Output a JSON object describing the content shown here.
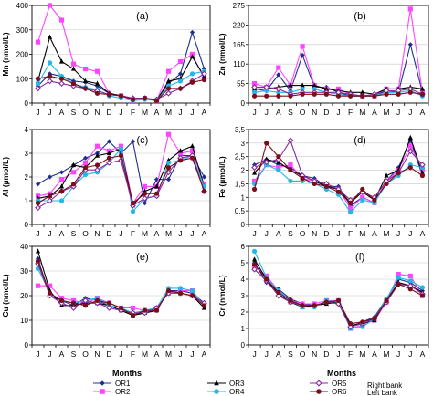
{
  "months_label": "Months",
  "x_ticks": [
    "J",
    "J",
    "A",
    "S",
    "O",
    "N",
    "D",
    "J",
    "F",
    "M",
    "A",
    "M",
    "J",
    "J",
    "A"
  ],
  "series_styles": [
    {
      "id": "OR1",
      "color": "#1f2f8f",
      "marker": "diamond"
    },
    {
      "id": "OR2",
      "color": "#ff44ff",
      "marker": "square"
    },
    {
      "id": "OR3",
      "color": "#000000",
      "marker": "triangle"
    },
    {
      "id": "OR4",
      "color": "#22b8e6",
      "marker": "circle"
    },
    {
      "id": "OR5",
      "color": "#8a2a9a",
      "marker": "diamond-open"
    },
    {
      "id": "OR6",
      "color": "#7a0d1a",
      "marker": "circle"
    }
  ],
  "legend": {
    "entries": [
      {
        "series": "OR1",
        "label": "OR1"
      },
      {
        "series": "OR3",
        "label": "OR3"
      },
      {
        "series": "OR5",
        "label": "OR5"
      },
      {
        "series": "OR2",
        "label": "OR2"
      },
      {
        "series": "OR4",
        "label": "OR4"
      },
      {
        "series": "OR6",
        "label": "OR6"
      }
    ],
    "note_right": "Right bank",
    "note_left": "Left bank"
  },
  "chart_data": [
    {
      "type": "line",
      "panel": "(a)",
      "ylabel": "Mn (nmol/L)",
      "ylim": [
        0,
        400
      ],
      "yticks": [
        0,
        100,
        200,
        300,
        400
      ],
      "ytick_labels": [
        "0",
        "100",
        "200",
        "300",
        "400"
      ],
      "series": [
        {
          "id": "OR1",
          "values": [
            70,
            120,
            110,
            90,
            85,
            70,
            40,
            30,
            15,
            20,
            15,
            80,
            120,
            290,
            140
          ]
        },
        {
          "id": "OR2",
          "values": [
            250,
            400,
            340,
            160,
            140,
            130,
            40,
            30,
            10,
            20,
            10,
            130,
            170,
            200,
            100
          ]
        },
        {
          "id": "OR3",
          "values": [
            90,
            270,
            170,
            140,
            90,
            80,
            40,
            30,
            20,
            20,
            10,
            90,
            100,
            190,
            110
          ]
        },
        {
          "id": "OR4",
          "values": [
            80,
            165,
            110,
            80,
            65,
            55,
            30,
            20,
            10,
            15,
            10,
            70,
            90,
            120,
            130
          ]
        },
        {
          "id": "OR5",
          "values": [
            60,
            90,
            80,
            70,
            60,
            50,
            35,
            30,
            20,
            20,
            15,
            40,
            60,
            90,
            120
          ]
        },
        {
          "id": "OR6",
          "values": [
            100,
            110,
            100,
            80,
            60,
            40,
            35,
            30,
            15,
            20,
            10,
            60,
            60,
            85,
            95
          ]
        }
      ]
    },
    {
      "type": "line",
      "panel": "(b)",
      "ylabel": "Zn (nmol/L)",
      "ylim": [
        0,
        275
      ],
      "yticks": [
        0,
        55,
        110,
        165,
        220,
        275
      ],
      "ytick_labels": [
        "0",
        "55",
        "110",
        "165",
        "220",
        "275"
      ],
      "series": [
        {
          "id": "OR1",
          "values": [
            40,
            35,
            80,
            35,
            135,
            45,
            45,
            30,
            20,
            20,
            20,
            35,
            30,
            165,
            30
          ]
        },
        {
          "id": "OR2",
          "values": [
            55,
            45,
            100,
            50,
            160,
            50,
            40,
            40,
            25,
            20,
            20,
            40,
            40,
            265,
            30
          ]
        },
        {
          "id": "OR3",
          "values": [
            40,
            40,
            45,
            50,
            50,
            50,
            40,
            35,
            30,
            30,
            25,
            40,
            40,
            45,
            40
          ]
        },
        {
          "id": "OR4",
          "values": [
            30,
            35,
            30,
            30,
            40,
            40,
            30,
            25,
            20,
            20,
            20,
            30,
            30,
            35,
            20
          ]
        },
        {
          "id": "OR5",
          "values": [
            45,
            45,
            40,
            25,
            30,
            30,
            30,
            30,
            25,
            20,
            25,
            35,
            35,
            40,
            25
          ]
        },
        {
          "id": "OR6",
          "values": [
            20,
            20,
            20,
            20,
            25,
            25,
            25,
            20,
            20,
            20,
            20,
            25,
            25,
            30,
            25
          ]
        }
      ]
    },
    {
      "type": "line",
      "panel": "(c)",
      "ylabel": "Al (µmol/L)",
      "ylim": [
        0,
        4
      ],
      "yticks": [
        0,
        1,
        2,
        3,
        4
      ],
      "ytick_labels": [
        "0",
        "1",
        "2",
        "3",
        "4"
      ],
      "series": [
        {
          "id": "OR1",
          "values": [
            1.7,
            2.0,
            2.2,
            2.5,
            2.8,
            3.0,
            3.5,
            3.0,
            3.5,
            0.9,
            1.9,
            1.9,
            2.9,
            2.9,
            2.0
          ]
        },
        {
          "id": "OR2",
          "values": [
            1.2,
            1.3,
            1.9,
            2.2,
            2.6,
            3.3,
            3.1,
            3.3,
            0.9,
            1.6,
            1.6,
            3.8,
            3.0,
            3.1,
            1.7
          ]
        },
        {
          "id": "OR3",
          "values": [
            1.1,
            1.2,
            1.6,
            2.5,
            2.4,
            2.9,
            3.0,
            3.2,
            0.8,
            1.4,
            1.6,
            2.7,
            3.1,
            3.3,
            1.6
          ]
        },
        {
          "id": "OR4",
          "values": [
            1.0,
            1.0,
            1.0,
            1.6,
            2.1,
            2.2,
            2.6,
            3.2,
            0.55,
            1.1,
            1.2,
            2.6,
            2.7,
            2.9,
            1.6
          ]
        },
        {
          "id": "OR5",
          "values": [
            0.7,
            1.0,
            1.4,
            1.6,
            2.3,
            2.3,
            2.6,
            2.7,
            0.8,
            1.1,
            1.2,
            2.2,
            2.8,
            2.9,
            1.4
          ]
        },
        {
          "id": "OR6",
          "values": [
            0.9,
            1.2,
            1.4,
            1.7,
            2.4,
            2.5,
            2.8,
            2.9,
            0.9,
            1.3,
            1.3,
            2.4,
            2.7,
            2.8,
            1.4
          ]
        }
      ]
    },
    {
      "type": "line",
      "panel": "(d)",
      "ylabel": "Fe (µmol/L)",
      "ylim": [
        0,
        3.5
      ],
      "yticks": [
        0,
        0.5,
        1,
        1.5,
        2,
        2.5,
        3,
        3.5
      ],
      "ytick_labels": [
        "0",
        "0,5",
        "1",
        "1,5",
        "2",
        "2,5",
        "3",
        "3,5"
      ],
      "series": [
        {
          "id": "OR1",
          "values": [
            2.2,
            2.4,
            2.2,
            2.1,
            1.8,
            1.7,
            1.4,
            1.4,
            0.7,
            1.0,
            0.8,
            1.6,
            2.1,
            3.1,
            1.8
          ]
        },
        {
          "id": "OR2",
          "values": [
            1.6,
            2.2,
            2.1,
            2.2,
            1.7,
            1.6,
            1.4,
            1.3,
            0.6,
            1.0,
            0.8,
            1.6,
            2.0,
            2.9,
            2.0
          ]
        },
        {
          "id": "OR3",
          "values": [
            1.9,
            2.4,
            2.3,
            2.0,
            1.8,
            1.6,
            1.4,
            1.3,
            0.8,
            1.2,
            0.9,
            1.8,
            2.0,
            3.2,
            1.9
          ]
        },
        {
          "id": "OR4",
          "values": [
            1.5,
            2.2,
            2.0,
            1.6,
            1.6,
            1.5,
            1.3,
            1.1,
            0.45,
            0.9,
            0.8,
            1.5,
            1.8,
            2.2,
            2.1
          ]
        },
        {
          "id": "OR5",
          "values": [
            2.1,
            2.3,
            2.4,
            3.1,
            1.8,
            1.6,
            1.5,
            1.3,
            0.9,
            1.2,
            1.0,
            1.6,
            1.9,
            2.7,
            2.2
          ]
        },
        {
          "id": "OR6",
          "values": [
            1.3,
            3.0,
            2.5,
            2.0,
            1.7,
            1.5,
            1.4,
            1.2,
            0.8,
            1.3,
            0.9,
            1.5,
            1.9,
            2.1,
            1.8
          ]
        }
      ]
    },
    {
      "type": "line",
      "panel": "(e)",
      "ylabel": "Cu (nmol/L)",
      "ylim": [
        0,
        40
      ],
      "yticks": [
        0,
        10,
        20,
        30,
        40
      ],
      "ytick_labels": [
        "0",
        "10",
        "20",
        "30",
        "40"
      ],
      "series": [
        {
          "id": "OR1",
          "values": [
            35,
            20,
            18,
            16,
            19,
            18,
            16,
            14,
            12,
            13,
            14,
            22,
            22,
            21,
            17
          ]
        },
        {
          "id": "OR2",
          "values": [
            24,
            24,
            19,
            18,
            17,
            19,
            17,
            15,
            15,
            14,
            15,
            21,
            22,
            22,
            16
          ]
        },
        {
          "id": "OR3",
          "values": [
            38,
            22,
            16,
            16,
            17,
            17,
            16,
            14,
            12,
            13,
            14,
            22,
            21,
            20,
            15
          ]
        },
        {
          "id": "OR4",
          "values": [
            31,
            21,
            18,
            17,
            18,
            19,
            16,
            15,
            13,
            14,
            15,
            23,
            23,
            22,
            16
          ]
        },
        {
          "id": "OR5",
          "values": [
            33,
            20,
            17,
            15,
            18,
            17,
            15,
            14,
            13,
            13,
            15,
            21,
            21,
            20,
            17
          ]
        },
        {
          "id": "OR6",
          "values": [
            34,
            21,
            18,
            17,
            16,
            18,
            17,
            15,
            12,
            14,
            14,
            22,
            21,
            20,
            16
          ]
        }
      ]
    },
    {
      "type": "line",
      "panel": "(f)",
      "ylabel": "Cr (nmol/L)",
      "ylim": [
        0,
        6
      ],
      "yticks": [
        0,
        1,
        2,
        3,
        4,
        5,
        6
      ],
      "ytick_labels": [
        "0",
        "1",
        "2",
        "3",
        "4",
        "5",
        "6"
      ],
      "series": [
        {
          "id": "OR1",
          "values": [
            5.0,
            3.8,
            3.4,
            2.8,
            2.5,
            2.4,
            2.6,
            2.6,
            1.1,
            1.4,
            1.7,
            2.8,
            4.0,
            3.8,
            3.3
          ]
        },
        {
          "id": "OR2",
          "values": [
            4.8,
            4.2,
            3.3,
            2.7,
            2.5,
            2.5,
            2.7,
            2.7,
            1.0,
            1.2,
            1.5,
            2.6,
            4.3,
            4.2,
            3.0
          ]
        },
        {
          "id": "OR3",
          "values": [
            5.2,
            4.0,
            3.1,
            2.6,
            2.3,
            2.4,
            2.5,
            2.6,
            1.2,
            1.3,
            1.5,
            2.7,
            3.8,
            3.6,
            3.2
          ]
        },
        {
          "id": "OR4",
          "values": [
            5.7,
            4.1,
            3.3,
            2.7,
            2.3,
            2.3,
            2.7,
            2.6,
            1.0,
            1.1,
            1.6,
            2.8,
            4.1,
            3.9,
            3.5
          ]
        },
        {
          "id": "OR5",
          "values": [
            4.6,
            3.9,
            3.0,
            2.6,
            2.4,
            2.4,
            2.6,
            2.5,
            1.1,
            1.3,
            1.6,
            2.6,
            3.7,
            3.6,
            3.1
          ]
        },
        {
          "id": "OR6",
          "values": [
            4.9,
            4.0,
            3.2,
            2.7,
            2.4,
            2.4,
            2.6,
            2.7,
            1.3,
            1.4,
            1.6,
            2.7,
            3.7,
            3.4,
            3.0
          ]
        }
      ]
    }
  ]
}
